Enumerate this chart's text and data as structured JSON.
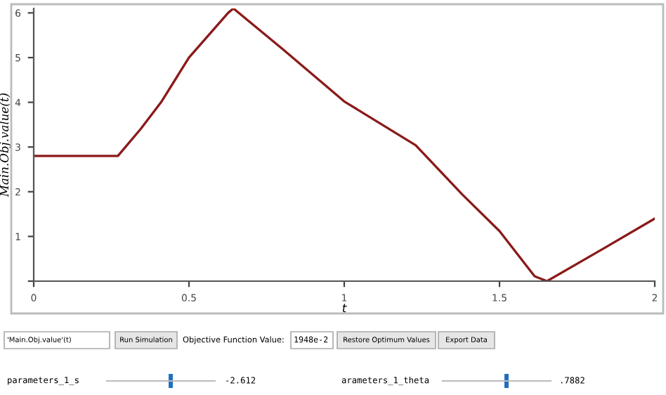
{
  "chart_data": {
    "type": "line",
    "xlabel": "t",
    "ylabel": "Main.Obj.value(t)",
    "x": [
      0,
      0.271,
      0.344,
      0.41,
      0.5,
      0.626,
      0.643,
      0.8,
      1.0,
      1.23,
      1.38,
      1.5,
      1.613,
      1.653,
      1.83,
      2.0
    ],
    "series": [
      {
        "color": "#8b1a1a",
        "values": [
          2.8,
          2.8,
          3.4,
          4.0,
          5.0,
          6.0,
          6.1,
          5.2,
          4.02,
          3.04,
          1.94,
          1.12,
          0.11,
          0.0,
          0.71,
          1.4
        ]
      }
    ],
    "xlim": [
      0,
      2
    ],
    "xticks": [
      0,
      0.5,
      1,
      1.5,
      2
    ],
    "ylim": [
      0,
      6.1
    ],
    "yticks": [
      {
        "value": 0,
        "label": null
      },
      1,
      2,
      3,
      4,
      5,
      6
    ],
    "grid": false,
    "legend": false,
    "marker": "none",
    "line_style": "solid",
    "annotations": [
      "'Main.Obj.value'(t)",
      "Run Simulation",
      "Objective Function Value:",
      "1948e-2",
      "Restore Optimum Values",
      "Export Data",
      "parameters_1_s",
      "-2.612",
      "arameters_1_theta",
      ".7882"
    ]
  }
}
